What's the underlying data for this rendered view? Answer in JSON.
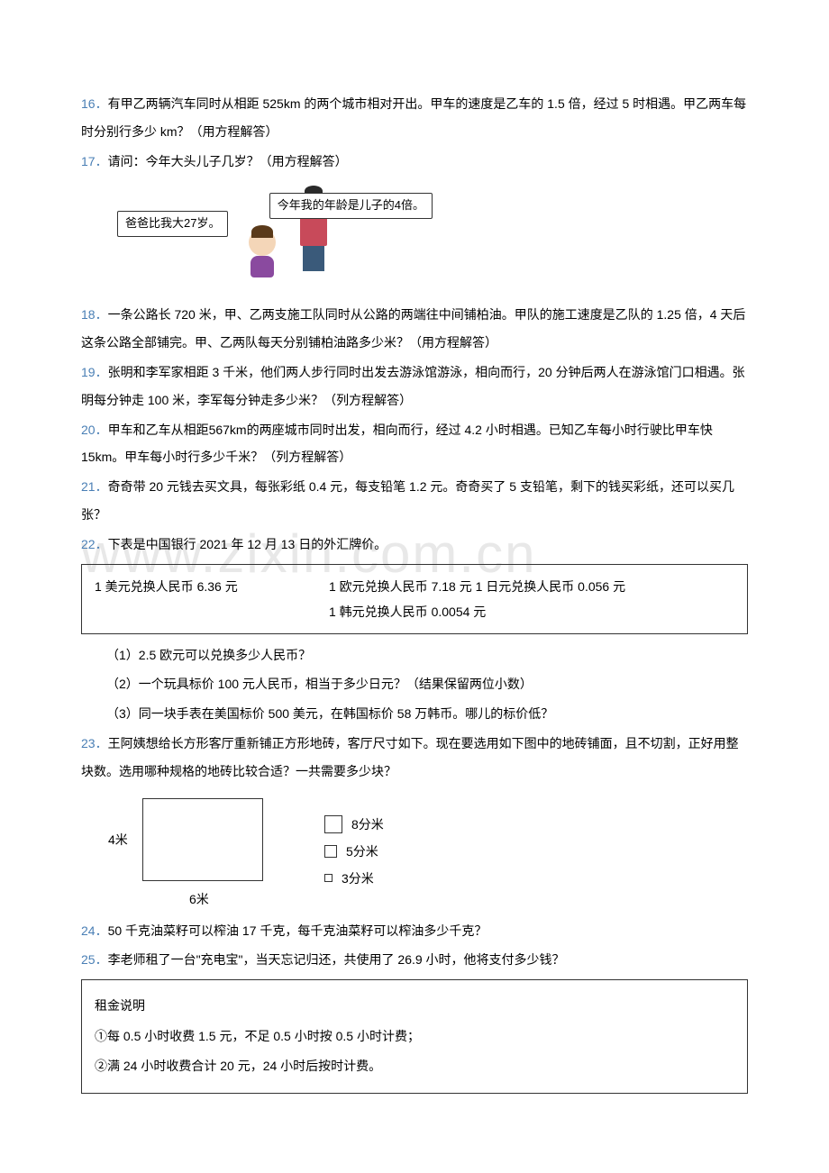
{
  "watermark": "www.zixin.com.cn",
  "problems": {
    "p16": {
      "num": "16．",
      "text": "有甲乙两辆汽车同时从相距 525km 的两个城市相对开出。甲车的速度是乙车的 1.5 倍，经过 5 时相遇。甲乙两车每时分别行多少 km？（用方程解答）"
    },
    "p17": {
      "num": "17．",
      "text": "请问：今年大头儿子几岁？（用方程解答）",
      "speech_left": "爸爸比我大27岁。",
      "speech_right": "今年我的年龄是儿子的4倍。"
    },
    "p18": {
      "num": "18．",
      "text": "一条公路长 720 米，甲、乙两支施工队同时从公路的两端往中间铺柏油。甲队的施工速度是乙队的 1.25 倍，4 天后这条公路全部铺完。甲、乙两队每天分别铺柏油路多少米？（用方程解答）"
    },
    "p19": {
      "num": "19．",
      "text": "张明和李军家相距 3 千米，他们两人步行同时出发去游泳馆游泳，相向而行，20 分钟后两人在游泳馆门口相遇。张明每分钟走 100 米，李军每分钟走多少米？（列方程解答）"
    },
    "p20": {
      "num": "20．",
      "text": "甲车和乙车从相距567km的两座城市同时出发，相向而行，经过 4.2 小时相遇。已知乙车每小时行驶比甲车快15km。甲车每小时行多少千米？（列方程解答）"
    },
    "p21": {
      "num": "21．",
      "text": "奇奇带 20 元钱去买文具，每张彩纸 0.4 元，每支铅笔 1.2 元。奇奇买了 5 支铅笔，剩下的钱买彩纸，还可以买几张？"
    },
    "p22": {
      "num": "22．",
      "text": "下表是中国银行 2021 年 12 月 13 日的外汇牌价。",
      "table": {
        "r1c1": "1 美元兑换人民币 6.36 元",
        "r1c2": "1 欧元兑换人民币 7.18 元 1 日元兑换人民币 0.056 元",
        "r2c2": "1 韩元兑换人民币 0.0054 元"
      },
      "sub": {
        "s1": "（1）2.5 欧元可以兑换多少人民币？",
        "s2": "（2）一个玩具标价 100 元人民币，相当于多少日元？（结果保留两位小数）",
        "s3": "（3）同一块手表在美国标价 500 美元，在韩国标价 58 万韩币。哪儿的标价低？"
      }
    },
    "p23": {
      "num": "23．",
      "text": "王阿姨想给长方形客厅重新铺正方形地砖，客厅尺寸如下。现在要选用如下图中的地砖铺面，且不切割，正好用整块数。选用哪种规格的地砖比较合适？一共需要多少块？",
      "room": {
        "width_label": "6米",
        "height_label": "4米"
      },
      "tiles": {
        "t1": "8分米",
        "t2": "5分米",
        "t3": "3分米"
      }
    },
    "p24": {
      "num": "24．",
      "text": "50 千克油菜籽可以榨油 17 千克，每千克油菜籽可以榨油多少千克？"
    },
    "p25": {
      "num": "25．",
      "text": "李老师租了一台\"充电宝\"，当天忘记归还，共使用了 26.9 小时，他将支付多少钱？",
      "rental": {
        "title": "租金说明",
        "r1": "①每 0.5 小时收费 1.5 元，不足 0.5 小时按 0.5 小时计费；",
        "r2": "②满 24 小时收费合计 20 元，24 小时后按时计费。"
      }
    }
  },
  "colors": {
    "num_color": "#4a7fb5",
    "text_color": "#000000",
    "border_color": "#333333",
    "watermark_color": "#e8e8e8",
    "background": "#ffffff"
  },
  "typography": {
    "body_fontsize": 14,
    "line_height": 2.2,
    "watermark_fontsize": 60
  }
}
